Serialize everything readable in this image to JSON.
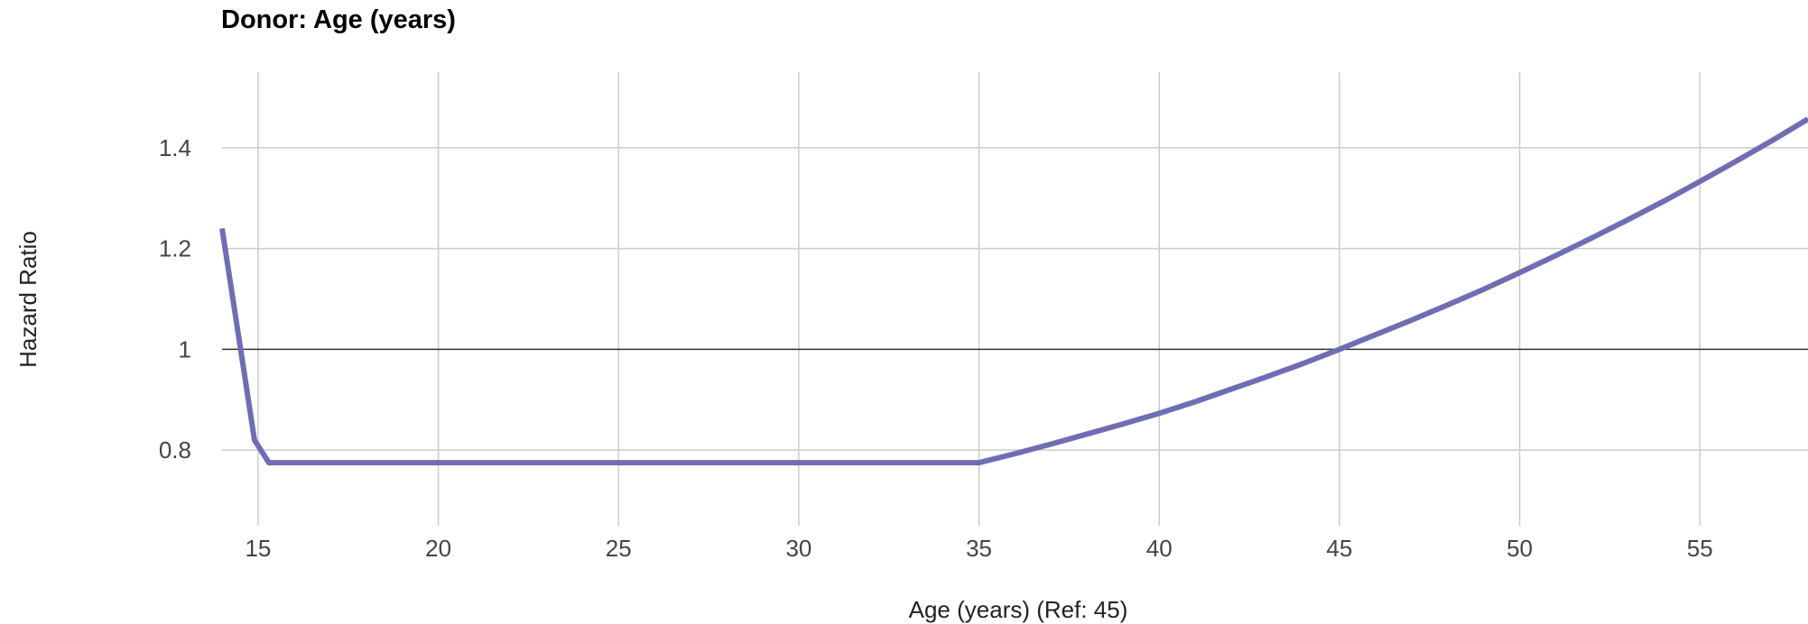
{
  "chart_data": {
    "type": "line",
    "title": "Donor: Age (years)",
    "xlabel": "Age (years) (Ref: 45)",
    "ylabel": "Hazard Ratio",
    "xlim": [
      14,
      58
    ],
    "ylim": [
      0.65,
      1.55
    ],
    "x_ticks": [
      "15",
      "20",
      "25",
      "30",
      "35",
      "40",
      "45",
      "50",
      "55"
    ],
    "y_ticks": [
      "0.8",
      "1",
      "1.2",
      "1.4"
    ],
    "reference_line": 1,
    "grid": true,
    "colors": {
      "series": "#6f6db4",
      "grid": "#cccccc",
      "reference": "#333333"
    },
    "series": [
      {
        "x": [
          14,
          14.3,
          14.6,
          14.9,
          15.3,
          16,
          20,
          25,
          30,
          35,
          36,
          37,
          38,
          39,
          40,
          41,
          42,
          43,
          44,
          45,
          46,
          47,
          48,
          49,
          50,
          51,
          52,
          53,
          54,
          55,
          56,
          57,
          58
        ],
        "values": [
          1.24,
          1.1,
          0.96,
          0.82,
          0.775,
          0.775,
          0.775,
          0.775,
          0.775,
          0.775,
          0.793,
          0.812,
          0.832,
          0.852,
          0.873,
          0.896,
          0.921,
          0.946,
          0.972,
          1.0,
          1.029,
          1.058,
          1.088,
          1.119,
          1.152,
          1.186,
          1.221,
          1.257,
          1.294,
          1.333,
          1.373,
          1.414,
          1.457
        ]
      }
    ]
  }
}
